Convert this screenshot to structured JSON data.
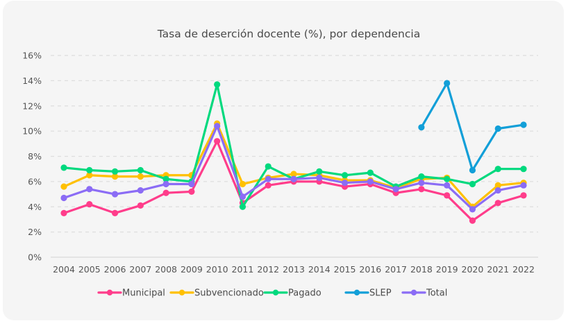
{
  "chart_data": {
    "type": "line",
    "title": "Tasa de deserción docente (%), por dependencia",
    "xlabel": "",
    "ylabel": "",
    "ylim": [
      0,
      16
    ],
    "yticks": [
      0,
      2,
      4,
      6,
      8,
      10,
      12,
      14,
      16
    ],
    "ytick_labels": [
      "0%",
      "2%",
      "4%",
      "6%",
      "8%",
      "10%",
      "12%",
      "14%",
      "16%"
    ],
    "grid": true,
    "legend_position": "bottom",
    "categories": [
      "2004",
      "2005",
      "2006",
      "2007",
      "2008",
      "2009",
      "2010",
      "2011",
      "2012",
      "2013",
      "2014",
      "2015",
      "2016",
      "2017",
      "2018",
      "2019",
      "2020",
      "2021",
      "2022"
    ],
    "series": [
      {
        "name": "Municipal",
        "color": "#ff3d8b",
        "values": [
          3.5,
          4.2,
          3.5,
          4.1,
          5.1,
          5.2,
          9.2,
          4.3,
          5.7,
          6.0,
          6.0,
          5.6,
          5.8,
          5.1,
          5.4,
          4.9,
          2.9,
          4.3,
          4.9
        ]
      },
      {
        "name": "Subvencionado",
        "color": "#ffc000",
        "values": [
          5.6,
          6.5,
          6.4,
          6.4,
          6.5,
          6.5,
          10.6,
          5.8,
          6.3,
          6.6,
          6.5,
          6.1,
          6.1,
          5.5,
          6.2,
          6.3,
          4.0,
          5.7,
          5.9
        ]
      },
      {
        "name": "Pagado",
        "color": "#00d97e",
        "values": [
          7.1,
          6.9,
          6.8,
          6.9,
          6.2,
          6.0,
          13.7,
          4.0,
          7.2,
          6.2,
          6.8,
          6.5,
          6.7,
          5.6,
          6.4,
          6.2,
          5.8,
          7.0,
          7.0
        ]
      },
      {
        "name": "SLEP",
        "color": "#129fd8",
        "values": [
          null,
          null,
          null,
          null,
          null,
          null,
          null,
          null,
          null,
          null,
          null,
          null,
          null,
          null,
          10.3,
          13.8,
          6.9,
          10.2,
          10.5
        ]
      },
      {
        "name": "Total",
        "color": "#8b6cf5",
        "values": [
          4.7,
          5.4,
          5.0,
          5.3,
          5.8,
          5.8,
          10.4,
          4.8,
          6.2,
          6.2,
          6.3,
          5.9,
          6.0,
          5.4,
          5.9,
          5.7,
          3.8,
          5.3,
          5.7
        ]
      }
    ]
  }
}
